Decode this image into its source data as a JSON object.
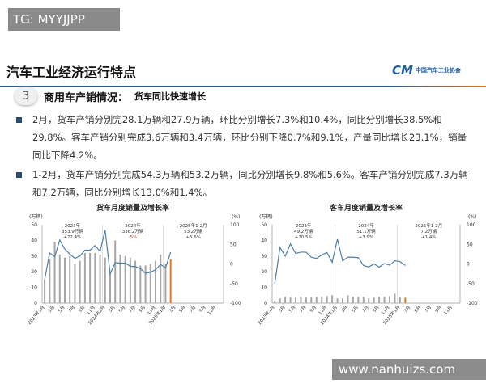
{
  "watermark_top": "TG: MYYJJPP",
  "header": {
    "title": "汽车工业经济运行特点",
    "logo_text": "中国汽车工业协会"
  },
  "section": {
    "number": "3",
    "title": "商用车产销情况：",
    "subtitle": "货车同比快速增长"
  },
  "bullets": [
    "2月，货车产销分别完28.1万辆和27.9万辆，环比分别增长7.3%和10.4%，同比分别增长38.5%和29.8%。客车产销分别完成3.6万辆和3.4万辆，环比分别下降0.7%和9.1%，产量同比增长23.1%，销量同比下降4.2%。",
    "1-2月，货车产销分别完成54.3万辆和53.2万辆，同比分别增长9.8%和5.6%。客车产销分别完成7.3万辆和7.2万辆，同比分别增长13.0%和1.4%。"
  ],
  "footer": "www.nanhuizs.com",
  "colors": {
    "bar": "#a6a6a6",
    "bar_latest": "#e87722",
    "line": "#4f7fa8"
  },
  "chart_data": [
    {
      "type": "bar+line",
      "title": "货车月度销量及增长率",
      "ylabel_left": "(万辆)",
      "ylabel_right": "(%)",
      "ylim_left": [
        0,
        50
      ],
      "ylim_right": [
        -100,
        100
      ],
      "yticks_left": [
        "0",
        "10",
        "20",
        "30",
        "40",
        "50"
      ],
      "yticks_right": [
        "-100",
        "-50",
        "0",
        "50",
        "100"
      ],
      "xticks": [
        "2023年1月",
        "3月",
        "5月",
        "7月",
        "9月",
        "11月",
        "2024年1月",
        "3月",
        "5月",
        "7月",
        "9月",
        "11月",
        "2025年1月",
        "3月",
        "5月",
        "7月",
        "9月",
        "11月"
      ],
      "annotations": [
        {
          "l1": "2023年",
          "l2": "353.9万辆",
          "l3": "+22.4%"
        },
        {
          "l1": "2024年",
          "l2": "336.2万辆",
          "l3": "-5%"
        },
        {
          "l1": "2025年1-2月",
          "l2": "53.2万辆",
          "l3": "+5.6%"
        }
      ],
      "sales": [
        15,
        28,
        39,
        31,
        29,
        30,
        25,
        27,
        32,
        32,
        32,
        31,
        29,
        20,
        40,
        31,
        30,
        29,
        27,
        24,
        24,
        25,
        27,
        31,
        25,
        28
      ],
      "growth": [
        -40,
        28,
        18,
        61,
        38,
        25,
        14,
        20,
        35,
        35,
        47,
        32,
        86,
        -25,
        3,
        2,
        2,
        -6,
        -7,
        -12,
        -24,
        -21,
        -15,
        -1,
        -10,
        30
      ]
    },
    {
      "type": "bar+line",
      "title": "客车月度销量及增长率",
      "ylabel_left": "(万辆)",
      "ylabel_right": "(%)",
      "ylim_left": [
        0,
        50
      ],
      "ylim_right": [
        -100,
        100
      ],
      "yticks_left": [
        "0",
        "10",
        "20",
        "30",
        "40",
        "50"
      ],
      "yticks_right": [
        "-100",
        "-50",
        "0",
        "50",
        "100"
      ],
      "xticks": [
        "2023年1月",
        "3月",
        "5月",
        "7月",
        "9月",
        "11月",
        "2024年1月",
        "3月",
        "5月",
        "7月",
        "9月",
        "11月",
        "2025年1月",
        "3月",
        "5月",
        "7月",
        "9月",
        "11月"
      ],
      "annotations": [
        {
          "l1": "2023年",
          "l2": "49.2万辆",
          "l3": "+20.5%"
        },
        {
          "l1": "2024年",
          "l2": "51.1万辆",
          "l3": "+3.9%"
        },
        {
          "l1": "2025年1-2月",
          "l2": "7.2万辆",
          "l3": "+1.4%"
        }
      ],
      "sales": [
        1.5,
        3,
        4,
        3.5,
        3.5,
        4,
        3.5,
        3.5,
        4,
        4,
        4.5,
        5,
        3,
        3,
        5,
        4,
        4,
        4,
        3,
        3.5,
        4,
        4,
        4.5,
        6,
        3.5,
        3.4
      ],
      "growth": [
        -50,
        42,
        20,
        51,
        27,
        30,
        30,
        17,
        14,
        23,
        29,
        4,
        63,
        8,
        17,
        17,
        16,
        -4,
        -8,
        0,
        -8,
        1,
        -3,
        8,
        6,
        -4
      ]
    }
  ]
}
